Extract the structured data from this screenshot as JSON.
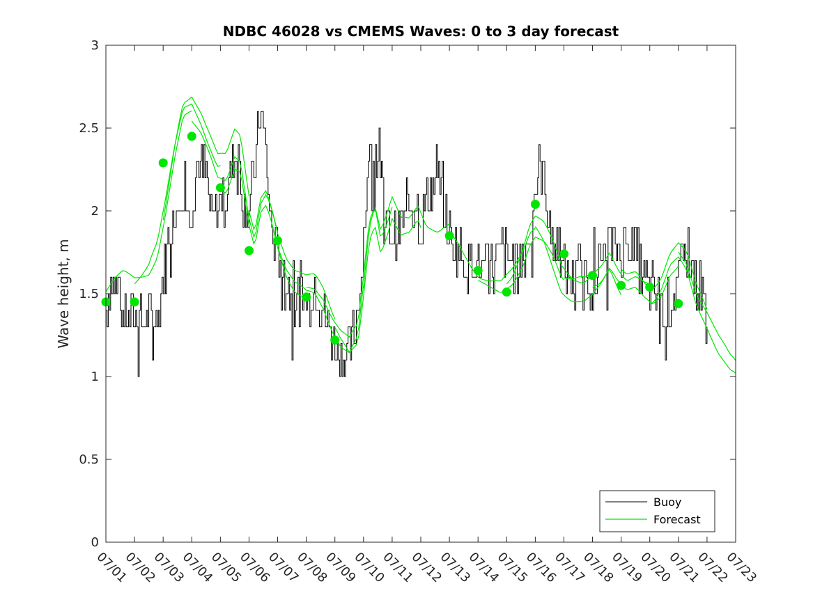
{
  "chart_data": {
    "type": "line",
    "title": "NDBC 46028 vs CMEMS Waves: 0 to 3 day forecast",
    "xlabel": "",
    "ylabel": "Wave height, m",
    "xlim": [
      0,
      22
    ],
    "ylim": [
      0,
      3
    ],
    "yticks": [
      0,
      0.5,
      1,
      1.5,
      2,
      2.5,
      3
    ],
    "ytick_labels": [
      "0",
      "0.5",
      "1",
      "1.5",
      "2",
      "2.5",
      "3"
    ],
    "xtick_labels": [
      "07/01",
      "07/02",
      "07/03",
      "07/04",
      "07/05",
      "07/06",
      "07/07",
      "07/08",
      "07/09",
      "07/10",
      "07/11",
      "07/12",
      "07/13",
      "07/14",
      "07/15",
      "07/16",
      "07/17",
      "07/18",
      "07/19",
      "07/20",
      "07/21",
      "07/22",
      "07/23"
    ],
    "grid": false,
    "legend_position": "bottom-right",
    "legend": [
      "Buoy",
      "Forecast"
    ],
    "colors": {
      "buoy": "#000000",
      "forecast": "#00e600",
      "axis": "#262626"
    },
    "buoy": {
      "name": "Buoy",
      "anchors": [
        [
          0.0,
          1.45
        ],
        [
          0.2,
          1.55
        ],
        [
          0.5,
          1.45
        ],
        [
          0.8,
          1.35
        ],
        [
          1.2,
          1.35
        ],
        [
          1.5,
          1.35
        ],
        [
          1.7,
          1.3
        ],
        [
          1.9,
          1.45
        ],
        [
          2.2,
          1.85
        ],
        [
          2.5,
          2.05
        ],
        [
          2.7,
          2.15
        ],
        [
          2.9,
          1.95
        ],
        [
          3.2,
          2.3
        ],
        [
          3.5,
          2.2
        ],
        [
          3.7,
          1.95
        ],
        [
          3.9,
          2.0
        ],
        [
          4.2,
          2.1
        ],
        [
          4.4,
          2.3
        ],
        [
          4.6,
          2.35
        ],
        [
          4.8,
          2.05
        ],
        [
          5.0,
          2.0
        ],
        [
          5.2,
          2.3
        ],
        [
          5.4,
          2.6
        ],
        [
          5.55,
          2.45
        ],
        [
          5.7,
          2.0
        ],
        [
          5.9,
          1.75
        ],
        [
          6.1,
          1.7
        ],
        [
          6.3,
          1.6
        ],
        [
          6.5,
          1.45
        ],
        [
          6.8,
          1.5
        ],
        [
          7.0,
          1.45
        ],
        [
          7.3,
          1.55
        ],
        [
          7.5,
          1.45
        ],
        [
          7.8,
          1.3
        ],
        [
          8.0,
          1.2
        ],
        [
          8.2,
          1.1
        ],
        [
          8.5,
          1.15
        ],
        [
          8.7,
          1.3
        ],
        [
          8.9,
          1.6
        ],
        [
          9.1,
          2.1
        ],
        [
          9.3,
          2.4
        ],
        [
          9.5,
          2.3
        ],
        [
          9.7,
          2.0
        ],
        [
          10.0,
          1.85
        ],
        [
          10.3,
          1.9
        ],
        [
          10.6,
          2.0
        ],
        [
          10.8,
          2.05
        ],
        [
          11.0,
          1.9
        ],
        [
          11.3,
          2.1
        ],
        [
          11.6,
          2.25
        ],
        [
          11.8,
          2.05
        ],
        [
          12.0,
          1.85
        ],
        [
          12.3,
          1.75
        ],
        [
          12.6,
          1.7
        ],
        [
          12.9,
          1.7
        ],
        [
          13.2,
          1.65
        ],
        [
          13.5,
          1.65
        ],
        [
          13.8,
          1.75
        ],
        [
          14.1,
          1.7
        ],
        [
          14.4,
          1.65
        ],
        [
          14.6,
          1.75
        ],
        [
          14.8,
          1.85
        ],
        [
          15.0,
          2.15
        ],
        [
          15.2,
          2.3
        ],
        [
          15.4,
          2.05
        ],
        [
          15.6,
          1.85
        ],
        [
          15.8,
          1.7
        ],
        [
          16.0,
          1.65
        ],
        [
          16.3,
          1.6
        ],
        [
          16.5,
          1.65
        ],
        [
          16.8,
          1.55
        ],
        [
          17.0,
          1.6
        ],
        [
          17.3,
          1.7
        ],
        [
          17.6,
          1.8
        ],
        [
          17.9,
          1.75
        ],
        [
          18.2,
          1.8
        ],
        [
          18.5,
          1.75
        ],
        [
          18.8,
          1.6
        ],
        [
          19.0,
          1.55
        ],
        [
          19.3,
          1.45
        ],
        [
          19.5,
          1.4
        ],
        [
          19.8,
          1.5
        ],
        [
          20.0,
          1.6
        ],
        [
          20.3,
          1.75
        ],
        [
          20.5,
          1.65
        ],
        [
          20.8,
          1.5
        ],
        [
          21.0,
          1.35
        ]
      ]
    },
    "forecast_base": [
      [
        0.0,
        1.5
      ],
      [
        0.3,
        1.54
      ],
      [
        0.6,
        1.57
      ],
      [
        1.0,
        1.55
      ],
      [
        1.5,
        1.6
      ],
      [
        1.8,
        1.7
      ],
      [
        2.1,
        1.95
      ],
      [
        2.4,
        2.25
      ],
      [
        2.7,
        2.5
      ],
      [
        3.0,
        2.55
      ],
      [
        3.3,
        2.45
      ],
      [
        3.6,
        2.3
      ],
      [
        3.9,
        2.15
      ],
      [
        4.2,
        2.15
      ],
      [
        4.5,
        2.32
      ],
      [
        4.7,
        2.3
      ],
      [
        5.0,
        1.95
      ],
      [
        5.2,
        1.8
      ],
      [
        5.4,
        2.0
      ],
      [
        5.6,
        2.05
      ],
      [
        5.8,
        1.95
      ],
      [
        6.0,
        1.82
      ],
      [
        6.3,
        1.67
      ],
      [
        6.6,
        1.58
      ],
      [
        7.0,
        1.52
      ],
      [
        7.3,
        1.52
      ],
      [
        7.6,
        1.45
      ],
      [
        7.9,
        1.33
      ],
      [
        8.2,
        1.23
      ],
      [
        8.5,
        1.17
      ],
      [
        8.8,
        1.25
      ],
      [
        9.0,
        1.55
      ],
      [
        9.2,
        1.9
      ],
      [
        9.4,
        2.0
      ],
      [
        9.6,
        1.82
      ],
      [
        9.8,
        1.9
      ],
      [
        10.0,
        2.0
      ],
      [
        10.3,
        1.88
      ],
      [
        10.6,
        1.9
      ],
      [
        10.9,
        2.0
      ],
      [
        11.2,
        1.88
      ],
      [
        11.6,
        1.82
      ],
      [
        12.0,
        1.84
      ],
      [
        12.3,
        1.78
      ],
      [
        12.6,
        1.7
      ],
      [
        13.0,
        1.6
      ],
      [
        13.4,
        1.55
      ],
      [
        13.8,
        1.52
      ],
      [
        14.2,
        1.6
      ],
      [
        14.6,
        1.75
      ],
      [
        14.8,
        1.86
      ],
      [
        15.0,
        1.9
      ],
      [
        15.3,
        1.85
      ],
      [
        15.6,
        1.75
      ],
      [
        15.9,
        1.62
      ],
      [
        16.3,
        1.56
      ],
      [
        16.7,
        1.53
      ],
      [
        17.0,
        1.55
      ],
      [
        17.3,
        1.62
      ],
      [
        17.6,
        1.73
      ],
      [
        17.9,
        1.63
      ],
      [
        18.2,
        1.55
      ],
      [
        18.5,
        1.55
      ],
      [
        18.8,
        1.5
      ],
      [
        19.1,
        1.48
      ],
      [
        19.4,
        1.55
      ],
      [
        19.7,
        1.68
      ],
      [
        20.0,
        1.72
      ],
      [
        20.3,
        1.65
      ],
      [
        20.6,
        1.48
      ],
      [
        21.0,
        1.35
      ],
      [
        21.4,
        1.18
      ],
      [
        21.8,
        1.05
      ],
      [
        22.0,
        1.02
      ]
    ],
    "forecast_runs": [
      {
        "start": 0.0,
        "offset": 0.03
      },
      {
        "start": 1.0,
        "offset": 0.08
      },
      {
        "start": 2.0,
        "offset": 0.12
      },
      {
        "start": 3.0,
        "offset": 0.02
      },
      {
        "start": 4.0,
        "offset": -0.03
      },
      {
        "start": 5.0,
        "offset": 0.05
      },
      {
        "start": 6.0,
        "offset": -0.02
      },
      {
        "start": 7.0,
        "offset": 0.03
      },
      {
        "start": 8.0,
        "offset": -0.04
      },
      {
        "start": 9.0,
        "offset": 0.04
      },
      {
        "start": 12.0,
        "offset": 0.02
      },
      {
        "start": 13.0,
        "offset": -0.03
      },
      {
        "start": 14.0,
        "offset": 0.04
      },
      {
        "start": 15.0,
        "offset": -0.06
      },
      {
        "start": 16.0,
        "offset": 0.03
      },
      {
        "start": 17.0,
        "offset": -0.03
      },
      {
        "start": 18.0,
        "offset": 0.05
      },
      {
        "start": 19.0,
        "offset": -0.02
      },
      {
        "start": 20.0,
        "offset": 0.04
      }
    ],
    "forecast_points": [
      [
        0,
        1.45
      ],
      [
        1,
        1.45
      ],
      [
        2,
        2.29
      ],
      [
        3,
        2.45
      ],
      [
        4,
        2.14
      ],
      [
        5,
        1.76
      ],
      [
        6,
        1.82
      ],
      [
        7,
        1.48
      ],
      [
        8,
        1.22
      ],
      [
        12,
        1.85
      ],
      [
        13,
        1.64
      ],
      [
        14,
        1.51
      ],
      [
        15,
        2.04
      ],
      [
        16,
        1.74
      ],
      [
        17,
        1.61
      ],
      [
        18,
        1.55
      ],
      [
        19,
        1.54
      ],
      [
        20,
        1.44
      ]
    ]
  }
}
